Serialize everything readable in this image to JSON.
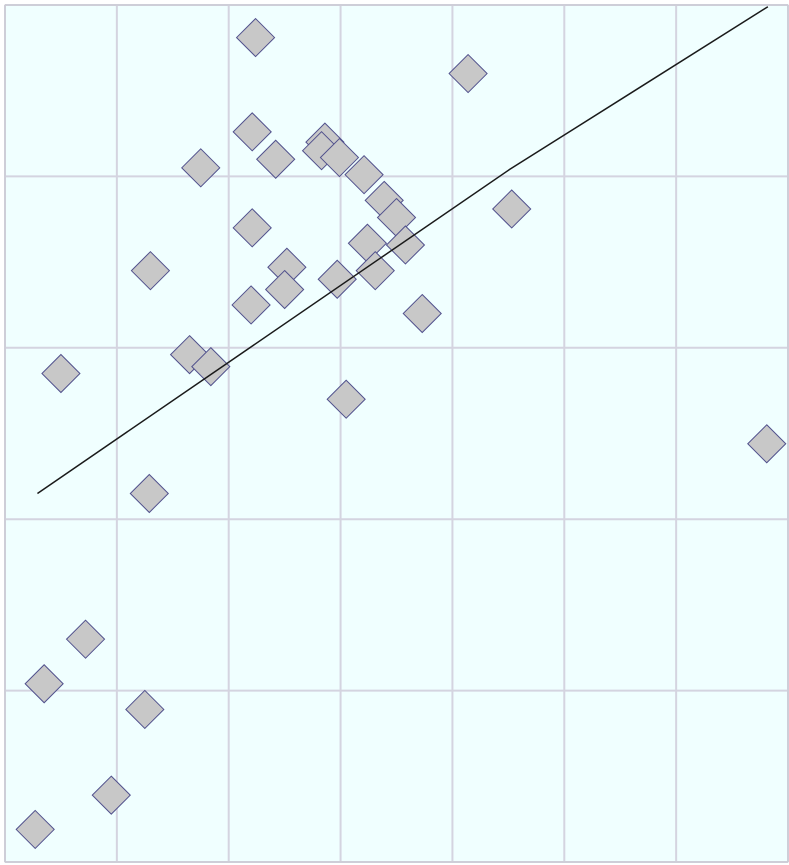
{
  "chart_data": {
    "type": "scatter",
    "x": [
      2.24,
      4.14,
      2.21,
      2.86,
      2.42,
      1.75,
      2.83,
      2.99,
      3.21,
      3.39,
      3.5,
      4.53,
      2.21,
      3.24,
      3.58,
      1.3,
      2.52,
      2.5,
      2.97,
      3.31,
      2.2,
      3.73,
      1.65,
      1.84,
      0.5,
      3.05,
      6.81,
      1.29,
      0.72,
      0.35,
      1.25,
      0.95,
      0.27
    ],
    "values": [
      4.81,
      4.6,
      4.26,
      4.2,
      4.1,
      4.05,
      4.15,
      4.11,
      4.01,
      3.86,
      3.76,
      3.81,
      3.7,
      3.61,
      3.6,
      3.45,
      3.47,
      3.34,
      3.4,
      3.45,
      3.25,
      3.2,
      2.96,
      2.89,
      2.85,
      2.7,
      2.44,
      2.15,
      1.3,
      1.04,
      0.89,
      0.39,
      0.19
    ],
    "color": "#c8c8c8",
    "edge_color": "#50508c",
    "trend": {
      "x": [
        0.29,
        4.51,
        6.82
      ],
      "values": [
        2.15,
        4.04,
        4.99
      ],
      "color": "#1a1a1a"
    },
    "xlim": [
      0,
      7
    ],
    "ylim": [
      0,
      5
    ],
    "xticks": [
      0,
      1,
      2,
      3,
      4,
      5,
      6,
      7
    ],
    "yticks": [
      0,
      1,
      2,
      3,
      4,
      5
    ],
    "grid": true,
    "background": "#f0ffff",
    "grid_color": "#d4d4e0"
  }
}
